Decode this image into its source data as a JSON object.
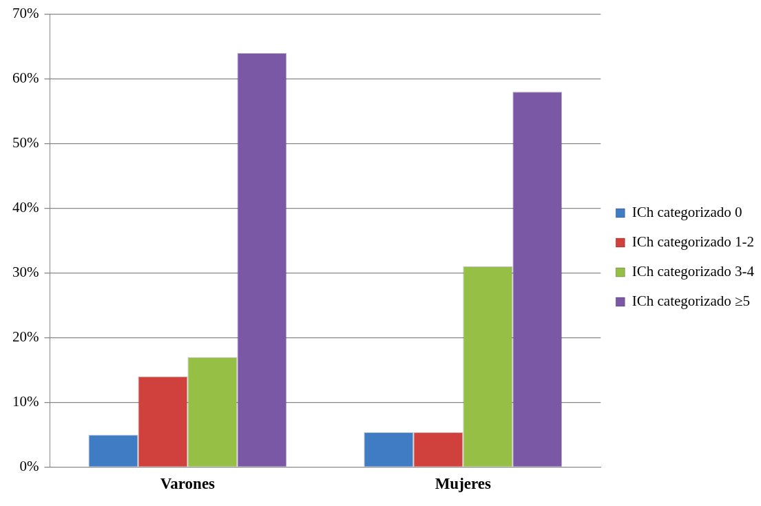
{
  "chart_data": {
    "type": "bar",
    "categories": [
      "Varones",
      "Mujeres"
    ],
    "series": [
      {
        "name": "ICh categorizado 0",
        "color": "#3f7cc4",
        "values": [
          5,
          5.4
        ]
      },
      {
        "name": "ICh categorizado 1-2",
        "color": "#d0403d",
        "values": [
          14,
          5.4
        ]
      },
      {
        "name": "ICh categorizado 3-4",
        "color": "#95bf45",
        "values": [
          17,
          31
        ]
      },
      {
        "name": "ICh categorizado ≥5",
        "color": "#7b58a6",
        "values": [
          64,
          58
        ]
      }
    ],
    "ylim": [
      0,
      70
    ],
    "yticks": [
      {
        "value": 0,
        "label": "0%"
      },
      {
        "value": 10,
        "label": "10%"
      },
      {
        "value": 20,
        "label": "20%"
      },
      {
        "value": 30,
        "label": "30%"
      },
      {
        "value": 40,
        "label": "40%"
      },
      {
        "value": 50,
        "label": "50%"
      },
      {
        "value": 60,
        "label": "60%"
      },
      {
        "value": 70,
        "label": "70%"
      }
    ],
    "grid": "y",
    "legend": "right"
  }
}
